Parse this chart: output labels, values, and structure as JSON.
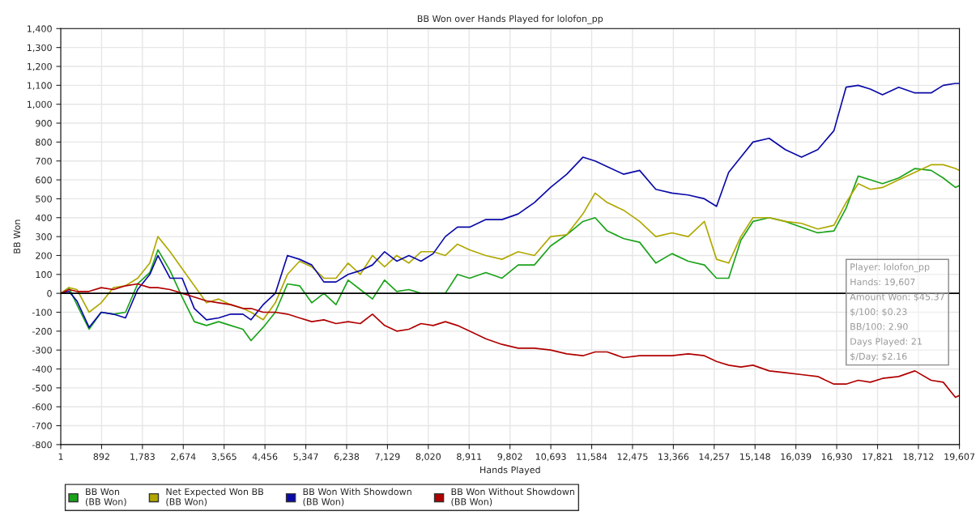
{
  "chart_data": {
    "type": "line",
    "title": "BB Won over Hands Played for lolofon_pp",
    "xlabel": "Hands Played",
    "ylabel": "BB Won",
    "x": [
      1,
      178,
      354,
      619,
      884,
      1149,
      1414,
      1679,
      1944,
      2121,
      2386,
      2650,
      2915,
      3180,
      3445,
      3710,
      3975,
      4152,
      4417,
      4682,
      4947,
      5211,
      5477,
      5741,
      6006,
      6271,
      6536,
      6801,
      7066,
      7331,
      7596,
      7861,
      8126,
      8391,
      8656,
      8921,
      9274,
      9627,
      9981,
      10334,
      10687,
      11040,
      11393,
      11659,
      11923,
      12277,
      12630,
      12983,
      13336,
      13690,
      14043,
      14308,
      14573,
      14838,
      15103,
      15456,
      15809,
      16162,
      16516,
      16869,
      17134,
      17399,
      17664,
      17929,
      18282,
      18636,
      18989,
      19254,
      19519,
      19607
    ],
    "series": [
      {
        "name": "BB Won\n(BB Won)",
        "color": "#1aa31a",
        "values": [
          0,
          30,
          -60,
          -190,
          -100,
          -110,
          -100,
          50,
          110,
          230,
          120,
          -20,
          -150,
          -170,
          -150,
          -170,
          -190,
          -250,
          -180,
          -100,
          50,
          40,
          -50,
          0,
          -60,
          70,
          20,
          -30,
          70,
          10,
          20,
          0,
          0,
          0,
          100,
          80,
          110,
          80,
          150,
          150,
          250,
          310,
          380,
          400,
          330,
          290,
          270,
          160,
          210,
          170,
          150,
          80,
          80,
          280,
          380,
          400,
          380,
          350,
          320,
          330,
          450,
          620,
          600,
          580,
          610,
          660,
          650,
          610,
          560,
          570
        ]
      },
      {
        "name": "Net Expected Won BB\n(BB Won)",
        "color": "#b0a800",
        "values": [
          0,
          30,
          20,
          -100,
          -50,
          30,
          40,
          80,
          160,
          300,
          220,
          130,
          40,
          -50,
          -30,
          -60,
          -80,
          -100,
          -140,
          -50,
          100,
          170,
          140,
          80,
          80,
          160,
          100,
          200,
          140,
          200,
          160,
          220,
          220,
          200,
          260,
          230,
          200,
          180,
          220,
          200,
          300,
          310,
          420,
          530,
          480,
          440,
          380,
          300,
          320,
          300,
          380,
          180,
          160,
          300,
          400,
          400,
          380,
          370,
          340,
          360,
          480,
          580,
          550,
          560,
          600,
          640,
          680,
          680,
          660,
          650
        ]
      },
      {
        "name": "BB Won With Showdown\n(BB Won)",
        "color": "#0a0aa8",
        "values": [
          0,
          10,
          -40,
          -180,
          -100,
          -110,
          -130,
          20,
          100,
          200,
          80,
          80,
          -80,
          -140,
          -130,
          -110,
          -110,
          -140,
          -60,
          0,
          200,
          180,
          150,
          60,
          60,
          100,
          120,
          150,
          220,
          170,
          200,
          170,
          210,
          300,
          350,
          350,
          390,
          390,
          420,
          480,
          560,
          630,
          720,
          700,
          670,
          630,
          650,
          550,
          530,
          520,
          500,
          460,
          640,
          720,
          800,
          820,
          760,
          720,
          760,
          860,
          1090,
          1100,
          1080,
          1050,
          1090,
          1060,
          1060,
          1100,
          1110,
          1110
        ]
      },
      {
        "name": "BB Won Without Showdown\n(BB Won)",
        "color": "#b00000",
        "values": [
          0,
          20,
          10,
          10,
          30,
          20,
          40,
          50,
          30,
          30,
          20,
          0,
          -20,
          -40,
          -50,
          -60,
          -80,
          -80,
          -100,
          -100,
          -110,
          -130,
          -150,
          -140,
          -160,
          -150,
          -160,
          -110,
          -170,
          -200,
          -190,
          -160,
          -170,
          -150,
          -170,
          -200,
          -240,
          -270,
          -290,
          -290,
          -300,
          -320,
          -330,
          -310,
          -310,
          -340,
          -330,
          -330,
          -330,
          -320,
          -330,
          -360,
          -380,
          -390,
          -380,
          -410,
          -420,
          -430,
          -440,
          -480,
          -480,
          -460,
          -470,
          -450,
          -440,
          -410,
          -460,
          -470,
          -550,
          -540
        ]
      }
    ],
    "xlim": [
      1,
      19607
    ],
    "ylim": [
      -800,
      1400
    ],
    "xticks": [
      1,
      {
        "value": 892,
        "label": "892"
      },
      {
        "value": 1783,
        "label": "1,783"
      },
      {
        "value": 2674,
        "label": "2,674"
      },
      {
        "value": 3565,
        "label": "3,565"
      },
      {
        "value": 4456,
        "label": "4,456"
      },
      {
        "value": 5347,
        "label": "5,347"
      },
      {
        "value": 6238,
        "label": "6,238"
      },
      {
        "value": 7129,
        "label": "7,129"
      },
      {
        "value": 8020,
        "label": "8,020"
      },
      {
        "value": 8911,
        "label": "8,911"
      },
      {
        "value": 9802,
        "label": "9,802"
      },
      {
        "value": 10693,
        "label": "10,693"
      },
      {
        "value": 11584,
        "label": "11,584"
      },
      {
        "value": 12475,
        "label": "12,475"
      },
      {
        "value": 13366,
        "label": "13,366"
      },
      {
        "value": 14257,
        "label": "14,257"
      },
      {
        "value": 15148,
        "label": "15,148"
      },
      {
        "value": 16039,
        "label": "16,039"
      },
      {
        "value": 16930,
        "label": "16,930"
      },
      {
        "value": 17821,
        "label": "17,821"
      },
      {
        "value": 18712,
        "label": "18,712"
      },
      {
        "value": 19607,
        "label": "19,607"
      }
    ],
    "yticks": [
      -800,
      -700,
      -600,
      -500,
      -400,
      -300,
      -200,
      -100,
      0,
      100,
      200,
      300,
      400,
      500,
      600,
      700,
      800,
      900,
      {
        "value": 1000,
        "label": "1,000"
      },
      {
        "value": 1100,
        "label": "1,100"
      },
      {
        "value": 1200,
        "label": "1,200"
      },
      {
        "value": 1300,
        "label": "1,300"
      },
      {
        "value": 1400,
        "label": "1,400"
      }
    ],
    "ref_lines": [
      {
        "axis": "y",
        "value": 0,
        "color": "#000000"
      }
    ],
    "annotations": [
      "Player: lolofon_pp",
      "Hands: 19,607",
      "Amount Won: $45.37",
      "$/100: $0.23",
      "BB/100: 2.90",
      "Days Played: 21",
      "$/Day: $2.16"
    ],
    "grid": true,
    "legend": "bottom",
    "marker": "none",
    "line_style": "solid"
  }
}
